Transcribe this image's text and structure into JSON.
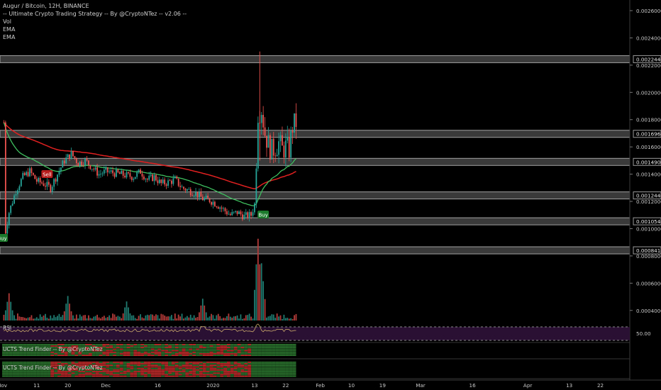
{
  "legend": {
    "symbol": "Augur / Bitcoin, 12H, BINANCE",
    "strategy": "-- Ultimate Crypto Trading Strategy -- By @CryptoNTez -- v2.06 --",
    "vol": "Vol",
    "ema1": "EMA",
    "ema2": "EMA"
  },
  "panes": {
    "rsi_label": "RSI",
    "rsi_tick": "50.00",
    "trend1_label": "UCTS Trend Finder -- By @CryptoNTez",
    "trend2_label": "UCTS Trend Finder -- By @CryptoNTez"
  },
  "signals": [
    {
      "label": "Sell",
      "color": "#b71c1c"
    },
    {
      "label": "Buy",
      "color": "#1b7a2c"
    },
    {
      "label": "Buy",
      "color": "#1b7a2c"
    }
  ],
  "colors": {
    "up": "#26a69a",
    "down": "#ef5350",
    "ema_fast": "#3fbf5f",
    "ema_slow": "#e02020",
    "sr_zone": "#7a7a7a",
    "rsi_band": "#2a1033"
  },
  "chart_data": {
    "type": "candlestick",
    "price_axis_ticks": [
      "0.00260000",
      "0.00240000",
      "0.00220000",
      "0.00200000",
      "0.00180000",
      "0.00160000",
      "0.00140000",
      "0.00120000",
      "0.00100000",
      "0.00080000",
      "0.00060000",
      "0.00040000"
    ],
    "sr_levels": [
      "0.00224400",
      "0.00169600",
      "0.00149000",
      "0.00124400",
      "0.00105400",
      "0.00084100"
    ],
    "ylim": [
      0.0003,
      0.0027
    ],
    "time_ticks": [
      {
        "label": "Nov",
        "d": 0
      },
      {
        "label": "11",
        "d": 10
      },
      {
        "label": "20",
        "d": 19
      },
      {
        "label": "Dec",
        "d": 30
      },
      {
        "label": "16",
        "d": 45
      },
      {
        "label": "2020",
        "d": 61
      },
      {
        "label": "13",
        "d": 73
      },
      {
        "label": "22",
        "d": 82
      },
      {
        "label": "Feb",
        "d": 92
      },
      {
        "label": "10",
        "d": 101
      },
      {
        "label": "19",
        "d": 110
      },
      {
        "label": "Mar",
        "d": 121
      },
      {
        "label": "16",
        "d": 136
      },
      {
        "label": "Apr",
        "d": 152
      },
      {
        "label": "13",
        "d": 164
      },
      {
        "label": "22",
        "d": 173
      }
    ],
    "close_path": [
      [
        1,
        0.00098
      ],
      [
        2,
        0.00112
      ],
      [
        4,
        0.00128
      ],
      [
        6,
        0.00138
      ],
      [
        8,
        0.00142
      ],
      [
        10,
        0.00135
      ],
      [
        12,
        0.00133
      ],
      [
        14,
        0.0013
      ],
      [
        16,
        0.0014
      ],
      [
        18,
        0.0015
      ],
      [
        20,
        0.00155
      ],
      [
        22,
        0.00148
      ],
      [
        24,
        0.0015
      ],
      [
        26,
        0.00145
      ],
      [
        28,
        0.0014
      ],
      [
        30,
        0.00142
      ],
      [
        32,
        0.00141
      ],
      [
        34,
        0.0014
      ],
      [
        36,
        0.00139
      ],
      [
        38,
        0.00138
      ],
      [
        40,
        0.00142
      ],
      [
        42,
        0.00136
      ],
      [
        44,
        0.00138
      ],
      [
        46,
        0.00133
      ],
      [
        48,
        0.00134
      ],
      [
        50,
        0.00136
      ],
      [
        52,
        0.0013
      ],
      [
        54,
        0.00128
      ],
      [
        56,
        0.00126
      ],
      [
        58,
        0.00122
      ],
      [
        60,
        0.00121
      ],
      [
        62,
        0.00118
      ],
      [
        64,
        0.00114
      ],
      [
        66,
        0.0011
      ],
      [
        68,
        0.00112
      ],
      [
        70,
        0.00109
      ],
      [
        72,
        0.0011
      ],
      [
        73,
        0.00118
      ],
      [
        74,
        0.00185
      ],
      [
        75,
        0.00188
      ],
      [
        76,
        0.0017
      ],
      [
        77,
        0.00162
      ],
      [
        78,
        0.00157
      ],
      [
        79,
        0.0016
      ],
      [
        80,
        0.00163
      ],
      [
        81,
        0.00158
      ],
      [
        82,
        0.0016
      ],
      [
        83,
        0.00158
      ],
      [
        84,
        0.00175
      ],
      [
        85,
        0.00178
      ]
    ],
    "volume_peaks": [
      {
        "d": 2,
        "v": 0.0005
      },
      {
        "d": 19,
        "v": 0.00048
      },
      {
        "d": 36,
        "v": 0.00044
      },
      {
        "d": 58,
        "v": 0.00046
      },
      {
        "d": 74,
        "v": 0.0009
      },
      {
        "d": 75,
        "v": 0.00072
      }
    ]
  }
}
